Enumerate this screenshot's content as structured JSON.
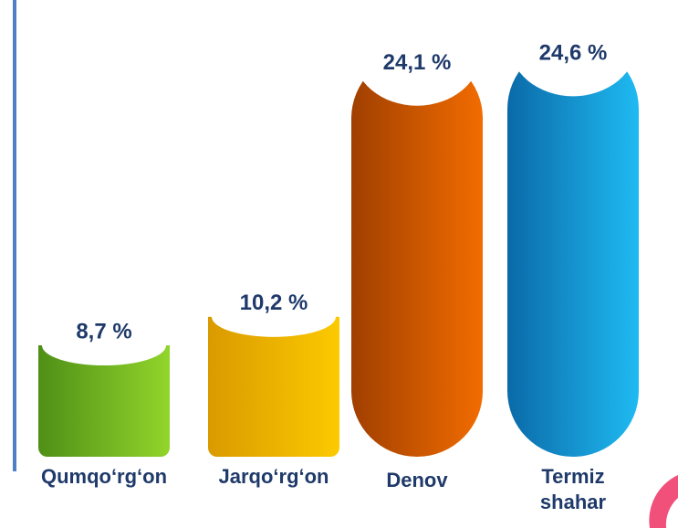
{
  "chart_data": {
    "type": "bar",
    "categories": [
      "Qumqo‘rg‘on",
      "Jarqo‘rg‘on",
      "Denov",
      "Termiz shahar"
    ],
    "values": [
      8.7,
      10.2,
      24.1,
      24.6
    ],
    "value_labels": [
      "8,7 %",
      "10,2 %",
      "24,1 %",
      "24,6 %"
    ],
    "colors": [
      [
        "#4f8f17",
        "#92d52b"
      ],
      [
        "#d99a00",
        "#fcca00"
      ],
      [
        "#a03f00",
        "#f26c00"
      ],
      [
        "#0a6aa8",
        "#1fbaf2"
      ]
    ]
  }
}
